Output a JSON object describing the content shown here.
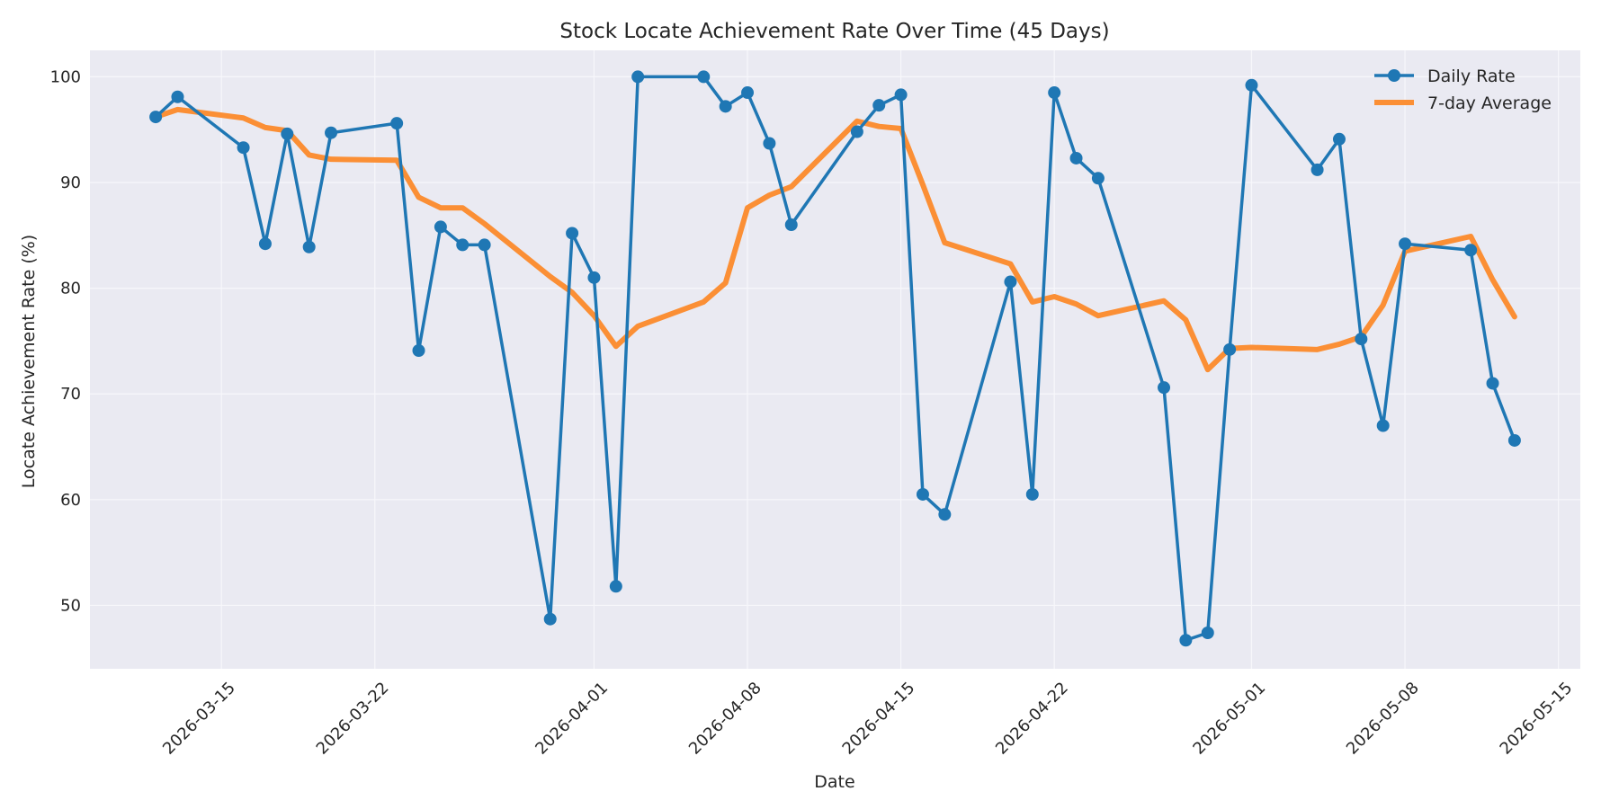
{
  "chart_data": {
    "type": "line",
    "title": "Stock Locate Achievement Rate Over Time (45 Days)",
    "xlabel": "Date",
    "ylabel": "Locate Achievement Rate (%)",
    "grid": true,
    "legend_position": "top-right",
    "xlim": [
      "2026-03-09",
      "2026-05-16"
    ],
    "ylim": [
      44,
      102.5
    ],
    "x_ticks": [
      "2026-03-15",
      "2026-03-22",
      "2026-04-01",
      "2026-04-08",
      "2026-04-15",
      "2026-04-22",
      "2026-05-01",
      "2026-05-08",
      "2026-05-15"
    ],
    "y_ticks": [
      50,
      60,
      70,
      80,
      90,
      100
    ],
    "x": [
      "2026-03-12",
      "2026-03-13",
      "2026-03-16",
      "2026-03-17",
      "2026-03-18",
      "2026-03-19",
      "2026-03-20",
      "2026-03-23",
      "2026-03-24",
      "2026-03-25",
      "2026-03-26",
      "2026-03-27",
      "2026-03-30",
      "2026-03-31",
      "2026-04-01",
      "2026-04-02",
      "2026-04-03",
      "2026-04-06",
      "2026-04-07",
      "2026-04-08",
      "2026-04-09",
      "2026-04-10",
      "2026-04-13",
      "2026-04-14",
      "2026-04-15",
      "2026-04-16",
      "2026-04-17",
      "2026-04-20",
      "2026-04-21",
      "2026-04-22",
      "2026-04-23",
      "2026-04-24",
      "2026-04-27",
      "2026-04-28",
      "2026-04-29",
      "2026-04-30",
      "2026-05-01",
      "2026-05-04",
      "2026-05-05",
      "2026-05-06",
      "2026-05-07",
      "2026-05-08",
      "2026-05-11",
      "2026-05-12",
      "2026-05-13"
    ],
    "series": [
      {
        "name": "Daily Rate",
        "color": "#1f77b4",
        "marker": "circle",
        "values": [
          96.2,
          98.1,
          93.3,
          84.2,
          94.6,
          83.9,
          94.7,
          95.6,
          74.1,
          85.8,
          84.1,
          84.1,
          48.7,
          85.2,
          81.0,
          51.8,
          100.0,
          100.0,
          97.2,
          98.5,
          93.7,
          86.0,
          94.8,
          97.3,
          98.3,
          60.5,
          58.6,
          80.6,
          60.5,
          98.5,
          92.3,
          90.4,
          70.6,
          46.7,
          47.4,
          74.2,
          99.2,
          91.2,
          94.1,
          75.2,
          67.0,
          84.2,
          83.6,
          71.0,
          65.6
        ]
      },
      {
        "name": "7-day Average",
        "color": "#ff7f0e",
        "marker": "none",
        "values": [
          96.2,
          96.9,
          96.1,
          95.2,
          94.9,
          92.6,
          92.2,
          92.1,
          88.6,
          87.6,
          87.6,
          86.1,
          81.1,
          79.6,
          77.4,
          74.5,
          76.4,
          78.7,
          80.5,
          87.6,
          88.8,
          89.6,
          95.8,
          95.3,
          95.1,
          89.8,
          84.3,
          82.3,
          78.7,
          79.2,
          78.5,
          77.4,
          78.8,
          77.0,
          72.3,
          74.3,
          74.4,
          74.2,
          74.7,
          75.4,
          78.4,
          83.5,
          84.9,
          80.8,
          77.3
        ]
      }
    ]
  }
}
